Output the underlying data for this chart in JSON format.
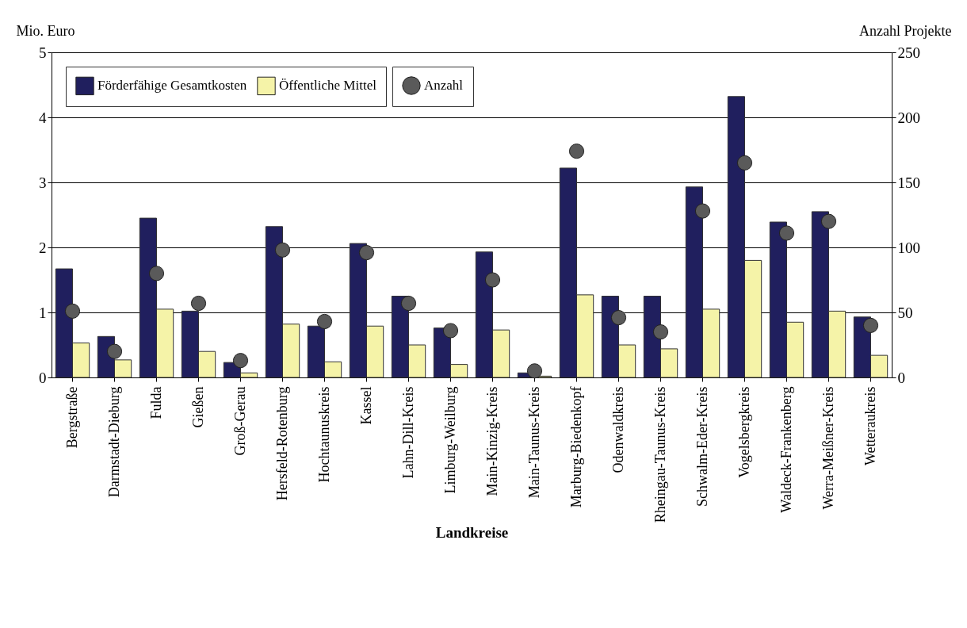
{
  "chart_data": {
    "type": "bar",
    "xlabel": "Landkreise",
    "ylabel": "Mio. Euro",
    "y2label": "Anzahl Projekte",
    "categories": [
      "Bergstraße",
      "Darmstadt-Dieburg",
      "Fulda",
      "Gießen",
      "Groß-Gerau",
      "Hersfeld-Rotenburg",
      "Hochtaunuskreis",
      "Kassel",
      "Lahn-Dill-Kreis",
      "Limburg-Weilburg",
      "Main-Kinzig-Kreis",
      "Main-Taunus-Kreis",
      "Marburg-Biedenkopf",
      "Odenwaldkreis",
      "Rheingau-Taunus-Kreis",
      "Schwalm-Eder-Kreis",
      "Vogelsbergkreis",
      "Waldeck-Frankenberg",
      "Werra-Meißner-Kreis",
      "Wetteraukreis"
    ],
    "series": [
      {
        "name": "Förderfähige Gesamtkosten",
        "color": "#201f5e",
        "values": [
          1.67,
          0.63,
          2.45,
          1.02,
          0.23,
          2.32,
          0.79,
          2.06,
          1.25,
          0.76,
          1.93,
          0.07,
          3.22,
          1.25,
          1.25,
          2.93,
          4.32,
          2.39,
          2.55,
          0.93
        ]
      },
      {
        "name": "Öffentliche Mittel",
        "color": "#f5f3a8",
        "values": [
          0.53,
          0.27,
          1.05,
          0.4,
          0.07,
          0.82,
          0.24,
          0.79,
          0.5,
          0.2,
          0.73,
          0.02,
          1.27,
          0.5,
          0.44,
          1.05,
          1.8,
          0.85,
          1.02,
          0.34
        ]
      },
      {
        "name": "Anzahl",
        "type": "scatter",
        "axis": "y2",
        "color": "#5a5a5a",
        "values": [
          51,
          20,
          80,
          57,
          13,
          98,
          43,
          96,
          57,
          36,
          75,
          5,
          174,
          46,
          35,
          128,
          165,
          111,
          120,
          40
        ]
      }
    ],
    "ylim": [
      0,
      5
    ],
    "yticks": [
      0,
      1,
      2,
      3,
      4,
      5
    ],
    "y2lim": [
      0,
      250
    ],
    "y2ticks": [
      0,
      50,
      100,
      150,
      200,
      250
    ],
    "grid": "y",
    "legend": "top left",
    "marker": "circle"
  }
}
